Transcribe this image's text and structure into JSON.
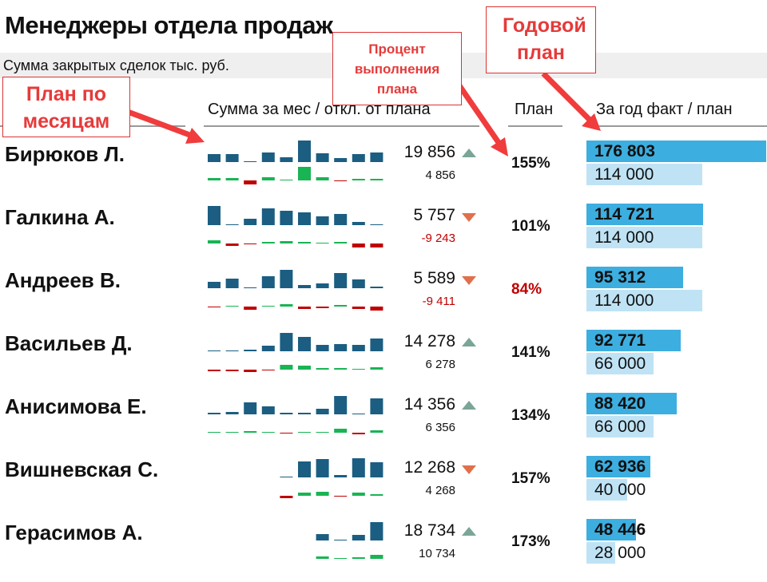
{
  "title": "Менеджеры отдела продаж",
  "subtitle": "Сумма закрытых сделок  тыс. руб.",
  "headers": {
    "monthly": "Сумма за мес / откл. от плана",
    "plan": "План",
    "year": "За год факт / план"
  },
  "callouts": {
    "monthly_plan": "План по месяцам",
    "percent": "Процент выполнения плана",
    "annual": "Годовой план"
  },
  "colors": {
    "bar": "#1b5e82",
    "positive": "#19b454",
    "negative": "#c00000",
    "up": "#7aa695",
    "down": "#e0704c",
    "fact": "#3daee0",
    "plan": "#bfe3f5"
  },
  "managers": [
    {
      "name": "Бирюков Л.",
      "sum": "19 856",
      "dev": "4 856",
      "trend": "up",
      "pct": "155%",
      "pct_red": false,
      "fact": "176 803",
      "fact_v": 176803,
      "plan": "114 000",
      "plan_v": 114000,
      "monthly": [
        10,
        10,
        1,
        12,
        6,
        27,
        11,
        5,
        10,
        12
      ],
      "deviation": [
        3,
        3,
        -5,
        4,
        1,
        17,
        4,
        -1,
        2,
        2
      ]
    },
    {
      "name": "Галкина А.",
      "sum": "5 757",
      "dev": "-9 243",
      "trend": "down",
      "pct": "101%",
      "pct_red": false,
      "fact": "114 721",
      "fact_v": 114721,
      "plan": "114 000",
      "plan_v": 114000,
      "monthly": [
        24,
        1,
        8,
        21,
        18,
        16,
        11,
        14,
        4,
        1
      ],
      "deviation": [
        4,
        -3,
        -1,
        2,
        3,
        2,
        1,
        2,
        -5,
        -5
      ]
    },
    {
      "name": "Андреев В.",
      "sum": "5 589",
      "dev": "-9 411",
      "trend": "down",
      "pct": "84%",
      "pct_red": true,
      "fact": "95 312",
      "fact_v": 95312,
      "plan": "114 000",
      "plan_v": 114000,
      "monthly": [
        8,
        12,
        1,
        15,
        23,
        4,
        6,
        19,
        11,
        2
      ],
      "deviation": [
        -1,
        1,
        -4,
        1,
        3,
        -3,
        -2,
        2,
        -3,
        -5
      ]
    },
    {
      "name": "Васильев Д.",
      "sum": "14 278",
      "dev": "6 278",
      "trend": "up",
      "pct": "141%",
      "pct_red": false,
      "fact": "92 771",
      "fact_v": 92771,
      "plan": "66 000",
      "plan_v": 66000,
      "monthly": [
        1,
        1,
        2,
        7,
        23,
        18,
        8,
        9,
        8,
        16
      ],
      "deviation": [
        -2,
        -2,
        -3,
        -1,
        6,
        5,
        2,
        2,
        1,
        3
      ]
    },
    {
      "name": "Анисимова Е.",
      "sum": "14 356",
      "dev": "6 356",
      "trend": "up",
      "pct": "134%",
      "pct_red": false,
      "fact": "88 420",
      "fact_v": 88420,
      "plan": "66 000",
      "plan_v": 66000,
      "monthly": [
        2,
        3,
        15,
        10,
        2,
        2,
        7,
        23,
        1,
        20
      ],
      "deviation": [
        1,
        1,
        2,
        1,
        -1,
        1,
        1,
        5,
        -2,
        3
      ]
    },
    {
      "name": "Вишневская С.",
      "sum": "12 268",
      "dev": "4 268",
      "trend": "down",
      "pct": "157%",
      "pct_red": false,
      "fact": "62 936",
      "fact_v": 62936,
      "plan": "40 000",
      "plan_v": 40000,
      "monthly": [
        null,
        null,
        null,
        null,
        1,
        20,
        23,
        3,
        24,
        19
      ],
      "deviation": [
        null,
        null,
        null,
        null,
        -3,
        4,
        5,
        -1,
        4,
        2
      ]
    },
    {
      "name": "Герасимов А.",
      "sum": "18 734",
      "dev": "10 734",
      "trend": "up",
      "pct": "173%",
      "pct_red": false,
      "fact": "48 446",
      "fact_v": 48446,
      "plan": "28 000",
      "plan_v": 28000,
      "monthly": [
        null,
        null,
        null,
        null,
        null,
        null,
        8,
        1,
        7,
        23
      ],
      "deviation": [
        null,
        null,
        null,
        null,
        null,
        null,
        3,
        1,
        2,
        5
      ]
    }
  ]
}
